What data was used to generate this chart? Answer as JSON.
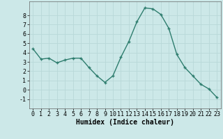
{
  "x": [
    0,
    1,
    2,
    3,
    4,
    5,
    6,
    7,
    8,
    9,
    10,
    11,
    12,
    13,
    14,
    15,
    16,
    17,
    18,
    19,
    20,
    21,
    22,
    23
  ],
  "y": [
    4.4,
    3.3,
    3.4,
    2.9,
    3.2,
    3.4,
    3.4,
    2.4,
    1.5,
    0.8,
    1.5,
    3.5,
    5.2,
    7.3,
    8.8,
    8.7,
    8.1,
    6.6,
    3.8,
    2.4,
    1.5,
    0.6,
    0.1,
    -0.8
  ],
  "xlabel": "Humidex (Indice chaleur)",
  "xlim": [
    -0.5,
    23.5
  ],
  "ylim": [
    -2,
    9.5
  ],
  "yticks": [
    -1,
    0,
    1,
    2,
    3,
    4,
    5,
    6,
    7,
    8
  ],
  "xticks": [
    0,
    1,
    2,
    3,
    4,
    5,
    6,
    7,
    8,
    9,
    10,
    11,
    12,
    13,
    14,
    15,
    16,
    17,
    18,
    19,
    20,
    21,
    22,
    23
  ],
  "line_color": "#2e7d6e",
  "marker_color": "#2e7d6e",
  "bg_color": "#cce8e8",
  "grid_color": "#b8d8d8",
  "xlabel_fontsize": 7,
  "tick_fontsize": 6,
  "line_width": 1.0,
  "marker_size": 3.5
}
